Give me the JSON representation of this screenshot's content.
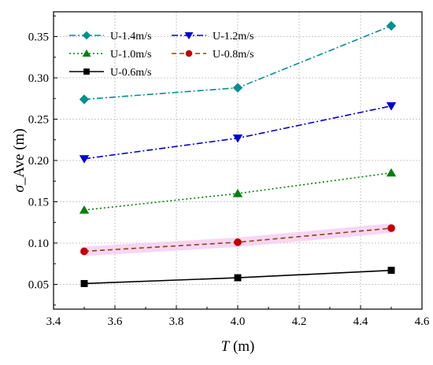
{
  "chart_data": {
    "type": "line",
    "xlabel_italic": "T",
    "xlabel_unit": " (m)",
    "ylabel_symbol": "σ",
    "ylabel_rest": "_Ave (m)",
    "xlim": [
      3.4,
      4.6
    ],
    "ylim": [
      0.02,
      0.38
    ],
    "xticks": [
      "3.4",
      "3.6",
      "3.8",
      "4.0",
      "4.2",
      "4.4",
      "4.6"
    ],
    "yticks": [
      "0.05",
      "0.10",
      "0.15",
      "0.20",
      "0.25",
      "0.30",
      "0.35"
    ],
    "grid": true,
    "legend_position": "top-left",
    "x": [
      3.5,
      4.0,
      4.5
    ],
    "series": [
      {
        "name": "U-1.4m/s",
        "values": [
          0.274,
          0.288,
          0.363
        ],
        "color": "#009090",
        "marker": "diamond",
        "dash": "dashdot"
      },
      {
        "name": "U-1.2m/s",
        "values": [
          0.202,
          0.227,
          0.266
        ],
        "color": "#0000d0",
        "marker": "triangle-down",
        "dash": "dashdot"
      },
      {
        "name": "U-1.0m/s",
        "values": [
          0.14,
          0.16,
          0.185
        ],
        "color": "#00800b",
        "marker": "triangle-up",
        "dash": "dotted"
      },
      {
        "name": "U-0.8m/s",
        "values": [
          0.09,
          0.101,
          0.118
        ],
        "color": "#c00000",
        "line_color": "#8b4513",
        "marker": "circle",
        "dash": "dashed",
        "band_color": "#f4c8f0"
      },
      {
        "name": "U-0.6m/s",
        "values": [
          0.051,
          0.058,
          0.067
        ],
        "color": "#000000",
        "marker": "square",
        "dash": "solid"
      }
    ]
  }
}
